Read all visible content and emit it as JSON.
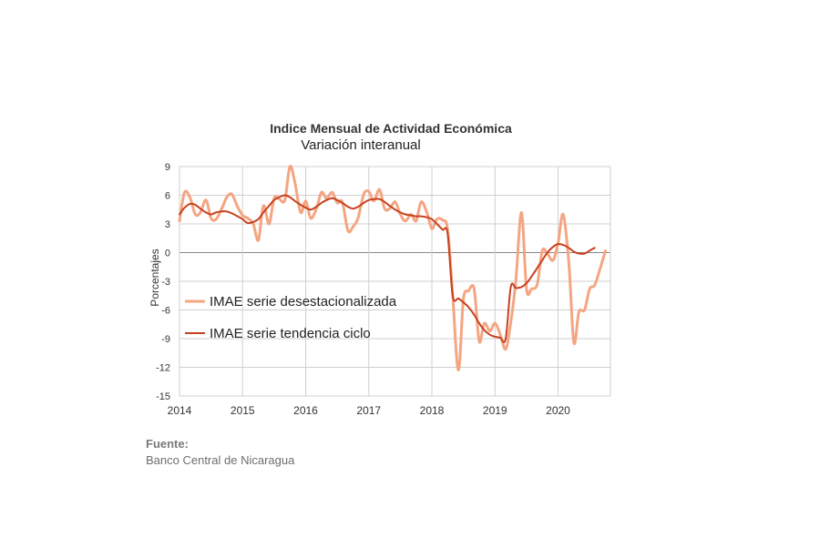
{
  "source": {
    "label": "Fuente:",
    "text": "Banco Central de Nicaragua"
  },
  "chart_data": {
    "type": "line",
    "title": "Indice Mensual de  Actividad Económica",
    "subtitle": "Variación interanual",
    "ylabel": "Porcentajes",
    "xlabel": "",
    "xlim": [
      2014.0,
      2020.83
    ],
    "ylim": [
      -15,
      9
    ],
    "yticks": [
      9,
      6,
      3,
      0,
      -3,
      -6,
      -9,
      -12,
      -15
    ],
    "xticks": [
      "2014",
      "2015",
      "2016",
      "2017",
      "2018",
      "2019",
      "2020"
    ],
    "grid": true,
    "legend_position": "left-middle",
    "colors": {
      "desestacionalizada": "#f4a582",
      "tendencia": "#c8401e"
    },
    "series": [
      {
        "name": "IMAE serie desestacionalizada",
        "key": "desestacionalizada",
        "points": [
          [
            2014.0,
            3.3
          ],
          [
            2014.08,
            6.3
          ],
          [
            2014.17,
            5.7
          ],
          [
            2014.25,
            4.0
          ],
          [
            2014.33,
            4.2
          ],
          [
            2014.42,
            5.5
          ],
          [
            2014.5,
            3.6
          ],
          [
            2014.58,
            3.5
          ],
          [
            2014.67,
            4.6
          ],
          [
            2014.75,
            5.8
          ],
          [
            2014.83,
            6.1
          ],
          [
            2014.92,
            4.8
          ],
          [
            2015.0,
            3.9
          ],
          [
            2015.08,
            3.6
          ],
          [
            2015.17,
            3.0
          ],
          [
            2015.25,
            1.3
          ],
          [
            2015.33,
            4.9
          ],
          [
            2015.42,
            3.0
          ],
          [
            2015.5,
            5.7
          ],
          [
            2015.58,
            5.6
          ],
          [
            2015.67,
            5.5
          ],
          [
            2015.75,
            9.0
          ],
          [
            2015.83,
            7.3
          ],
          [
            2015.92,
            4.2
          ],
          [
            2016.0,
            5.4
          ],
          [
            2016.08,
            3.6
          ],
          [
            2016.17,
            4.6
          ],
          [
            2016.25,
            6.3
          ],
          [
            2016.33,
            5.7
          ],
          [
            2016.42,
            6.3
          ],
          [
            2016.5,
            5.2
          ],
          [
            2016.58,
            5.3
          ],
          [
            2016.67,
            2.3
          ],
          [
            2016.75,
            2.7
          ],
          [
            2016.83,
            3.6
          ],
          [
            2016.92,
            6.1
          ],
          [
            2017.0,
            6.4
          ],
          [
            2017.08,
            5.4
          ],
          [
            2017.17,
            6.6
          ],
          [
            2017.25,
            4.6
          ],
          [
            2017.33,
            4.6
          ],
          [
            2017.42,
            5.3
          ],
          [
            2017.5,
            4.0
          ],
          [
            2017.58,
            3.3
          ],
          [
            2017.67,
            4.0
          ],
          [
            2017.75,
            3.3
          ],
          [
            2017.83,
            5.3
          ],
          [
            2017.92,
            4.2
          ],
          [
            2018.0,
            2.5
          ],
          [
            2018.08,
            3.5
          ],
          [
            2018.17,
            3.4
          ],
          [
            2018.25,
            2.4
          ],
          [
            2018.33,
            -4.5
          ],
          [
            2018.42,
            -12.3
          ],
          [
            2018.5,
            -4.9
          ],
          [
            2018.58,
            -4.0
          ],
          [
            2018.67,
            -3.8
          ],
          [
            2018.75,
            -9.3
          ],
          [
            2018.83,
            -7.4
          ],
          [
            2018.92,
            -8.2
          ],
          [
            2019.0,
            -7.4
          ],
          [
            2019.08,
            -8.5
          ],
          [
            2019.17,
            -10.1
          ],
          [
            2019.25,
            -7.3
          ],
          [
            2019.33,
            -3.0
          ],
          [
            2019.42,
            4.2
          ],
          [
            2019.5,
            -3.8
          ],
          [
            2019.58,
            -3.8
          ],
          [
            2019.67,
            -3.3
          ],
          [
            2019.75,
            0.2
          ],
          [
            2019.83,
            -0.1
          ],
          [
            2019.92,
            -0.8
          ],
          [
            2020.0,
            1.0
          ],
          [
            2020.08,
            4.0
          ],
          [
            2020.17,
            -1.0
          ],
          [
            2020.25,
            -9.4
          ],
          [
            2020.33,
            -6.2
          ],
          [
            2020.42,
            -6.0
          ],
          [
            2020.5,
            -3.8
          ],
          [
            2020.58,
            -3.4
          ],
          [
            2020.67,
            -1.6
          ],
          [
            2020.75,
            0.2
          ]
        ]
      },
      {
        "name": "IMAE serie  tendencia ciclo",
        "key": "tendencia",
        "points": [
          [
            2014.0,
            4.0
          ],
          [
            2014.08,
            4.7
          ],
          [
            2014.17,
            5.1
          ],
          [
            2014.25,
            5.0
          ],
          [
            2014.33,
            4.6
          ],
          [
            2014.42,
            4.2
          ],
          [
            2014.5,
            4.0
          ],
          [
            2014.58,
            4.2
          ],
          [
            2014.67,
            4.3
          ],
          [
            2014.75,
            4.3
          ],
          [
            2014.83,
            4.1
          ],
          [
            2014.92,
            3.8
          ],
          [
            2015.0,
            3.5
          ],
          [
            2015.08,
            3.1
          ],
          [
            2015.17,
            3.2
          ],
          [
            2015.25,
            3.5
          ],
          [
            2015.33,
            4.2
          ],
          [
            2015.42,
            4.9
          ],
          [
            2015.5,
            5.5
          ],
          [
            2015.58,
            5.8
          ],
          [
            2015.67,
            6.0
          ],
          [
            2015.75,
            5.8
          ],
          [
            2015.83,
            5.4
          ],
          [
            2015.92,
            5.0
          ],
          [
            2016.0,
            4.7
          ],
          [
            2016.08,
            4.5
          ],
          [
            2016.17,
            4.8
          ],
          [
            2016.25,
            5.2
          ],
          [
            2016.33,
            5.5
          ],
          [
            2016.42,
            5.7
          ],
          [
            2016.5,
            5.5
          ],
          [
            2016.58,
            5.2
          ],
          [
            2016.67,
            4.8
          ],
          [
            2016.75,
            4.6
          ],
          [
            2016.83,
            4.8
          ],
          [
            2016.92,
            5.2
          ],
          [
            2017.0,
            5.5
          ],
          [
            2017.08,
            5.6
          ],
          [
            2017.17,
            5.6
          ],
          [
            2017.25,
            5.3
          ],
          [
            2017.33,
            4.9
          ],
          [
            2017.42,
            4.5
          ],
          [
            2017.5,
            4.2
          ],
          [
            2017.58,
            4.0
          ],
          [
            2017.67,
            3.9
          ],
          [
            2017.75,
            3.8
          ],
          [
            2017.83,
            3.8
          ],
          [
            2017.92,
            3.7
          ],
          [
            2018.0,
            3.5
          ],
          [
            2018.08,
            3.0
          ],
          [
            2018.17,
            2.4
          ],
          [
            2018.25,
            2.0
          ],
          [
            2018.33,
            -4.5
          ],
          [
            2018.42,
            -4.8
          ],
          [
            2018.5,
            -5.2
          ],
          [
            2018.58,
            -5.7
          ],
          [
            2018.67,
            -6.5
          ],
          [
            2018.75,
            -7.4
          ],
          [
            2018.83,
            -8.1
          ],
          [
            2018.92,
            -8.6
          ],
          [
            2019.0,
            -8.8
          ],
          [
            2019.08,
            -8.9
          ],
          [
            2019.17,
            -9.0
          ],
          [
            2019.25,
            -3.6
          ],
          [
            2019.33,
            -3.7
          ],
          [
            2019.42,
            -3.6
          ],
          [
            2019.5,
            -3.2
          ],
          [
            2019.58,
            -2.5
          ],
          [
            2019.67,
            -1.6
          ],
          [
            2019.75,
            -0.8
          ],
          [
            2019.83,
            0.0
          ],
          [
            2019.92,
            0.6
          ],
          [
            2020.0,
            0.9
          ],
          [
            2020.08,
            0.8
          ],
          [
            2020.17,
            0.5
          ],
          [
            2020.25,
            0.1
          ],
          [
            2020.33,
            -0.1
          ],
          [
            2020.42,
            -0.1
          ],
          [
            2020.5,
            0.2
          ],
          [
            2020.58,
            0.5
          ]
        ]
      }
    ]
  }
}
